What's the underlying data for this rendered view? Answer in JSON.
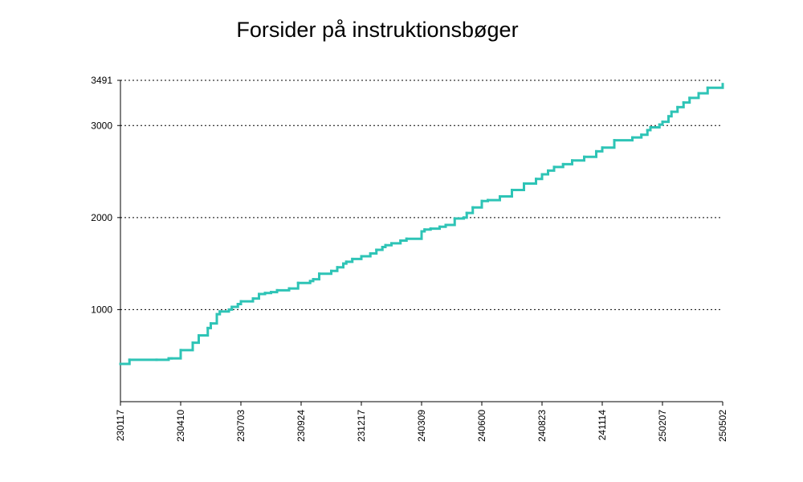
{
  "chart_data": {
    "type": "line",
    "title": "Forsider på instruktionsbøger",
    "xlabel": "",
    "ylabel": "",
    "x_tick_labels": [
      "230117",
      "230410",
      "230703",
      "230924",
      "231217",
      "240309",
      "240600",
      "240823",
      "241114",
      "250207",
      "250502"
    ],
    "y_ticks": [
      1000,
      2000,
      3000,
      3491
    ],
    "ylim": [
      0,
      3491
    ],
    "grid": "horizontal dotted",
    "series": [
      {
        "color": "#2ec4b6",
        "step": true,
        "x_index": [
          0,
          0.15,
          0.6,
          0.8,
          0.85,
          1.0,
          1.2,
          1.3,
          1.45,
          1.5,
          1.6,
          1.65,
          1.8,
          1.85,
          1.95,
          2.0,
          2.2,
          2.3,
          2.4,
          2.5,
          2.6,
          2.8,
          2.95,
          3.15,
          3.2,
          3.3,
          3.5,
          3.6,
          3.7,
          3.75,
          3.85,
          4.0,
          4.15,
          4.25,
          4.35,
          4.4,
          4.5,
          4.65,
          4.75,
          5.0,
          5.05,
          5.15,
          5.3,
          5.4,
          5.55,
          5.7,
          5.75,
          5.85,
          6.0,
          6.1,
          6.3,
          6.5,
          6.7,
          6.9,
          7.0,
          7.1,
          7.2,
          7.35,
          7.5,
          7.7,
          7.9,
          8.0,
          8.2,
          8.5,
          8.65,
          8.75,
          8.8,
          8.95,
          9.0,
          9.1,
          9.15,
          9.25,
          9.35,
          9.45,
          9.6,
          9.75,
          10.0
        ],
        "values": [
          410,
          455,
          455,
          470,
          470,
          560,
          640,
          720,
          800,
          850,
          950,
          980,
          1000,
          1030,
          1060,
          1090,
          1120,
          1170,
          1180,
          1190,
          1210,
          1230,
          1290,
          1310,
          1330,
          1390,
          1420,
          1460,
          1500,
          1520,
          1550,
          1580,
          1610,
          1650,
          1680,
          1700,
          1720,
          1750,
          1770,
          1850,
          1870,
          1880,
          1900,
          1920,
          1990,
          2000,
          2050,
          2110,
          2180,
          2190,
          2230,
          2300,
          2370,
          2420,
          2470,
          2510,
          2550,
          2580,
          2620,
          2660,
          2720,
          2760,
          2840,
          2870,
          2900,
          2950,
          2980,
          3010,
          3040,
          3100,
          3150,
          3200,
          3250,
          3300,
          3350,
          3410,
          3450
        ]
      }
    ]
  }
}
